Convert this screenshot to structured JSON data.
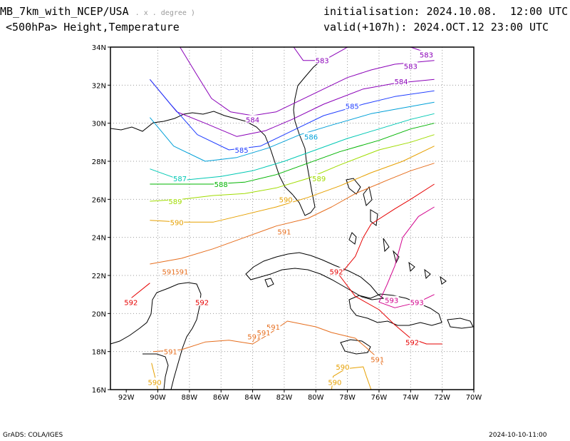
{
  "header": {
    "model": "MB_7km_with_NCEP/USA",
    "model_suffix": ". x . degree )",
    "level": "<500hPa> Height,Temperature",
    "init_label": "initialisation:",
    "init_value": "2024.10.08.  12:00 UTC",
    "valid_label": "valid(+107h):",
    "valid_value": "2024.OCT.12 23:00 UTC"
  },
  "footer": {
    "credit": "GrADS: COLA/IGES",
    "timestamp": "2024-10-10-11:00"
  },
  "map": {
    "lon_range": [
      -93,
      -70
    ],
    "lat_range": [
      16,
      34
    ],
    "lon_ticks": [
      "92W",
      "90W",
      "88W",
      "86W",
      "84W",
      "82W",
      "80W",
      "78W",
      "76W",
      "74W",
      "72W",
      "70W"
    ],
    "lat_ticks": [
      "34N",
      "32N",
      "30N",
      "28N",
      "26N",
      "24N",
      "22N",
      "20N",
      "18N",
      "16N"
    ],
    "grid": true
  },
  "chart_data": {
    "type": "contour",
    "variable": "500hPa geopotential height (dam)",
    "contours": [
      {
        "level": "583",
        "color": "#8a00b8",
        "points": [
          [
            -88.6,
            34
          ],
          [
            -87.5,
            32.5
          ],
          [
            -86.6,
            31.3
          ],
          [
            -85.4,
            30.6
          ],
          [
            -84.0,
            30.4
          ],
          [
            -82.5,
            30.6
          ],
          [
            -81.0,
            31.2
          ],
          [
            -79.5,
            31.8
          ],
          [
            -78.0,
            32.4
          ],
          [
            -76.5,
            32.8
          ],
          [
            -75.0,
            33.1
          ],
          [
            -72.5,
            33.3
          ]
        ],
        "labels": [
          [
            -74.0,
            33.0
          ]
        ]
      },
      {
        "level": "583",
        "color": "#8a00b8",
        "points": [
          [
            -81.4,
            34
          ],
          [
            -80.8,
            33.3
          ],
          [
            -79.5,
            33.3
          ],
          [
            -78.2,
            33.9
          ],
          [
            -78.0,
            34
          ]
        ],
        "labels": [
          [
            -79.6,
            33.3
          ]
        ]
      },
      {
        "level": "583",
        "color": "#8a00b8",
        "points": [
          [
            -74.0,
            34
          ],
          [
            -72.6,
            33.6
          ]
        ],
        "labels": [
          [
            -73.0,
            33.6
          ]
        ]
      },
      {
        "level": "584",
        "color": "#8a00b8",
        "points": [
          [
            -90.5,
            32.3
          ],
          [
            -88.8,
            30.6
          ],
          [
            -87.0,
            30.0
          ],
          [
            -85.0,
            29.3
          ],
          [
            -83.2,
            29.6
          ],
          [
            -81.5,
            30.2
          ],
          [
            -79.5,
            31.0
          ],
          [
            -77.0,
            31.8
          ],
          [
            -75.0,
            32.1
          ],
          [
            -72.5,
            32.3
          ]
        ],
        "labels": [
          [
            -84.0,
            30.2
          ],
          [
            -74.6,
            32.2
          ]
        ]
      },
      {
        "level": "585",
        "color": "#1e3cff",
        "points": [
          [
            -90.5,
            32.3
          ],
          [
            -89.2,
            31.0
          ],
          [
            -87.5,
            29.4
          ],
          [
            -85.5,
            28.6
          ],
          [
            -83.5,
            28.8
          ],
          [
            -81.5,
            29.6
          ],
          [
            -79.5,
            30.4
          ],
          [
            -77.0,
            31.0
          ],
          [
            -75.0,
            31.4
          ],
          [
            -72.5,
            31.7
          ]
        ],
        "labels": [
          [
            -84.7,
            28.6
          ],
          [
            -77.7,
            30.9
          ]
        ]
      },
      {
        "level": "586",
        "color": "#00a0d8",
        "points": [
          [
            -90.5,
            30.3
          ],
          [
            -89.0,
            28.8
          ],
          [
            -87.0,
            28.0
          ],
          [
            -85.0,
            28.2
          ],
          [
            -83.0,
            28.7
          ],
          [
            -81.0,
            29.4
          ],
          [
            -79.0,
            29.9
          ],
          [
            -76.5,
            30.5
          ],
          [
            -74.5,
            30.8
          ],
          [
            -72.5,
            31.1
          ]
        ],
        "labels": [
          [
            -80.3,
            29.3
          ]
        ]
      },
      {
        "level": "587",
        "color": "#00c8b4",
        "points": [
          [
            -90.5,
            27.6
          ],
          [
            -88.5,
            27.0
          ],
          [
            -86.0,
            27.2
          ],
          [
            -84.0,
            27.5
          ],
          [
            -82.0,
            28.0
          ],
          [
            -80.0,
            28.6
          ],
          [
            -78.0,
            29.2
          ],
          [
            -76.0,
            29.7
          ],
          [
            -74.0,
            30.2
          ],
          [
            -72.5,
            30.5
          ]
        ],
        "labels": [
          [
            -88.6,
            27.1
          ]
        ]
      },
      {
        "level": "588",
        "color": "#00b400",
        "points": [
          [
            -90.5,
            26.8
          ],
          [
            -88.5,
            26.8
          ],
          [
            -86.5,
            26.8
          ],
          [
            -84.5,
            26.9
          ],
          [
            -82.5,
            27.3
          ],
          [
            -80.5,
            27.9
          ],
          [
            -78.5,
            28.5
          ],
          [
            -76.0,
            29.1
          ],
          [
            -74.0,
            29.7
          ],
          [
            -72.5,
            30.0
          ]
        ],
        "labels": [
          [
            -86.0,
            26.8
          ]
        ]
      },
      {
        "level": "589",
        "color": "#a0dc00",
        "points": [
          [
            -90.5,
            25.9
          ],
          [
            -88.5,
            26.0
          ],
          [
            -86.5,
            26.2
          ],
          [
            -84.5,
            26.3
          ],
          [
            -82.5,
            26.6
          ],
          [
            -80.5,
            27.1
          ],
          [
            -78.5,
            27.8
          ],
          [
            -76.0,
            28.6
          ],
          [
            -74.0,
            29.0
          ],
          [
            -72.5,
            29.4
          ]
        ],
        "labels": [
          [
            -88.9,
            25.9
          ],
          [
            -79.8,
            27.1
          ]
        ]
      },
      {
        "level": "590",
        "color": "#e6a000",
        "points": [
          [
            -90.5,
            24.9
          ],
          [
            -88.5,
            24.8
          ],
          [
            -86.5,
            24.8
          ],
          [
            -84.5,
            25.2
          ],
          [
            -82.5,
            25.6
          ],
          [
            -80.5,
            26.1
          ],
          [
            -78.5,
            26.7
          ],
          [
            -76.5,
            27.4
          ],
          [
            -74.5,
            28.0
          ],
          [
            -72.5,
            28.8
          ]
        ],
        "labels": [
          [
            -88.8,
            24.8
          ],
          [
            -81.9,
            26.0
          ]
        ]
      },
      {
        "level": "591",
        "color": "#e66e1e",
        "points": [
          [
            -90.5,
            22.6
          ],
          [
            -88.5,
            22.9
          ],
          [
            -86.5,
            23.4
          ],
          [
            -84.5,
            24.0
          ],
          [
            -82.5,
            24.6
          ],
          [
            -80.5,
            25.0
          ],
          [
            -79.0,
            25.6
          ],
          [
            -77.5,
            26.3
          ],
          [
            -75.5,
            27.0
          ],
          [
            -74.0,
            27.5
          ],
          [
            -72.5,
            27.9
          ]
        ],
        "labels": [
          [
            -82.0,
            24.3
          ],
          [
            -88.5,
            22.2
          ]
        ]
      },
      {
        "level": "592",
        "color": "#e60000",
        "points": [
          [
            -78.5,
            22.0
          ],
          [
            -77.5,
            23.0
          ],
          [
            -77.0,
            24.0
          ],
          [
            -76.5,
            24.7
          ],
          [
            -75.0,
            25.5
          ],
          [
            -74.0,
            26.0
          ],
          [
            -72.5,
            26.8
          ]
        ],
        "labels": [
          [
            -78.7,
            22.2
          ]
        ]
      },
      {
        "level": "592",
        "color": "#e60000",
        "points": [
          [
            -78.5,
            22.0
          ],
          [
            -77.5,
            20.9
          ],
          [
            -76.0,
            20.2
          ],
          [
            -75.0,
            19.4
          ],
          [
            -74.0,
            18.7
          ],
          [
            -73.0,
            18.4
          ],
          [
            -72.0,
            18.4
          ]
        ],
        "labels": [
          [
            -73.9,
            18.5
          ]
        ]
      },
      {
        "level": "593",
        "color": "#d2008c",
        "points": [
          [
            -72.5,
            25.6
          ],
          [
            -73.5,
            25.1
          ],
          [
            -74.5,
            24.0
          ],
          [
            -75.0,
            22.5
          ],
          [
            -75.5,
            21.5
          ],
          [
            -76.0,
            20.6
          ],
          [
            -75.0,
            20.3
          ],
          [
            -73.5,
            20.6
          ],
          [
            -72.5,
            21.0
          ]
        ],
        "labels": [
          [
            -75.2,
            20.7
          ],
          [
            -73.6,
            20.6
          ]
        ]
      },
      {
        "level": "591",
        "color": "#e66e1e",
        "points": [
          [
            -90.3,
            18.0
          ],
          [
            -88.5,
            18.1
          ],
          [
            -87.0,
            18.5
          ],
          [
            -85.5,
            18.6
          ],
          [
            -84.0,
            18.4
          ],
          [
            -83.0,
            18.9
          ],
          [
            -81.8,
            19.6
          ],
          [
            -80.0,
            19.3
          ],
          [
            -79.0,
            19.0
          ],
          [
            -77.5,
            18.7
          ],
          [
            -76.8,
            18.2
          ],
          [
            -76.0,
            17.6
          ],
          [
            -75.8,
            17.3
          ]
        ],
        "labels": [
          [
            -89.2,
            18.0
          ],
          [
            -82.7,
            19.3
          ],
          [
            -76.1,
            17.6
          ]
        ]
      },
      {
        "level": "591",
        "color": "#e66e1e",
        "points": [
          [
            -84.0,
            18.5
          ],
          [
            -83.6,
            19.1
          ],
          [
            -82.8,
            19.2
          ]
        ],
        "labels": [
          [
            -83.9,
            18.8
          ],
          [
            -83.3,
            19.0
          ]
        ]
      },
      {
        "level": "590",
        "color": "#e6a000",
        "points": [
          [
            -79.0,
            16.0
          ],
          [
            -78.9,
            16.7
          ],
          [
            -78.1,
            17.1
          ],
          [
            -77.0,
            17.2
          ],
          [
            -76.8,
            16.7
          ],
          [
            -76.5,
            16.0
          ]
        ],
        "labels": [
          [
            -78.3,
            17.2
          ],
          [
            -78.8,
            16.4
          ]
        ]
      },
      {
        "level": "590",
        "color": "#e6a000",
        "points": [
          [
            -90.4,
            17.4
          ],
          [
            -90.1,
            16.4
          ],
          [
            -90.0,
            16.0
          ]
        ],
        "labels": [
          [
            -90.2,
            16.4
          ]
        ]
      },
      {
        "level": "592",
        "color": "#e60000",
        "points": [
          [
            -91.7,
            20.8
          ],
          [
            -90.5,
            21.6
          ]
        ],
        "labels": [
          [
            -91.7,
            20.6
          ],
          [
            -87.2,
            20.6
          ]
        ]
      },
      {
        "level": "591",
        "color": "#e66e1e",
        "points": [
          [
            -89.5,
            22.0
          ],
          [
            -88.7,
            22.3
          ]
        ],
        "labels": [
          [
            -89.3,
            22.2
          ]
        ]
      }
    ]
  }
}
